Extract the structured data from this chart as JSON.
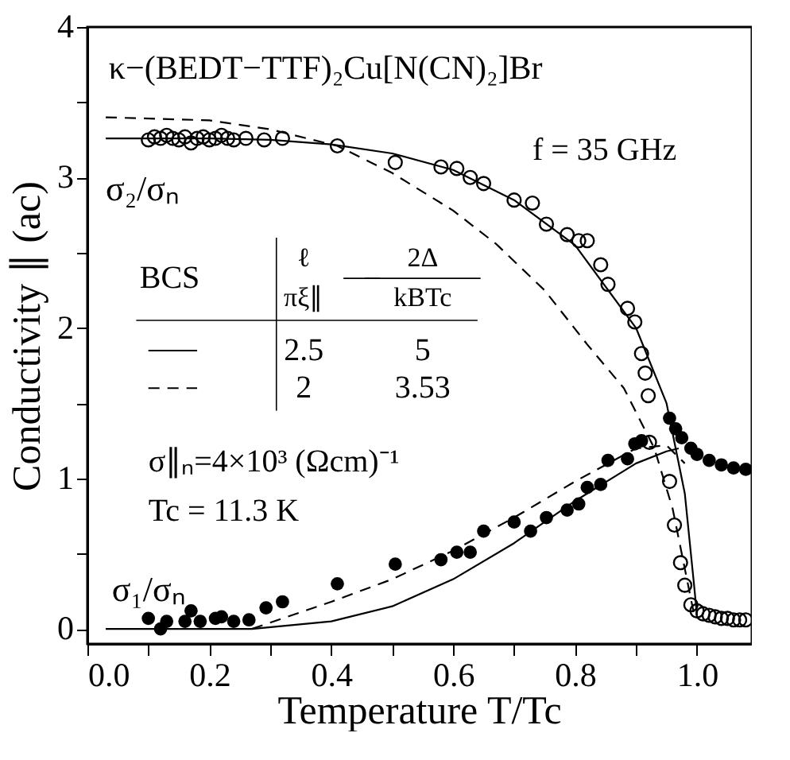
{
  "chart_data": {
    "type": "scatter",
    "xlabel": "Temperature T/Tc",
    "ylabel": "Conductivity ∥ (ac)",
    "xlim": [
      0,
      1.09
    ],
    "ylim": [
      -0.1,
      4
    ],
    "xticks": [
      {
        "value": 0.0,
        "label": "0.0"
      },
      {
        "value": 0.1,
        "label": null
      },
      {
        "value": 0.2,
        "label": "0.2"
      },
      {
        "value": 0.3,
        "label": null
      },
      {
        "value": 0.4,
        "label": "0.4"
      },
      {
        "value": 0.5,
        "label": null
      },
      {
        "value": 0.6,
        "label": "0.6"
      },
      {
        "value": 0.7,
        "label": null
      },
      {
        "value": 0.8,
        "label": "0.8"
      },
      {
        "value": 0.9,
        "label": null
      },
      {
        "value": 1.0,
        "label": "1.0"
      }
    ],
    "yticks": [
      0,
      {
        "value": 0.5,
        "label": null
      },
      1,
      {
        "value": 1.5,
        "label": null
      },
      2,
      {
        "value": 2.5,
        "label": null
      },
      3,
      {
        "value": 3.5,
        "label": null
      },
      4
    ],
    "grid": false,
    "series": [
      {
        "name": "σ₂/σₙ",
        "marker": "circle",
        "color": "#000000",
        "x": [
          0.1,
          0.11,
          0.12,
          0.13,
          0.14,
          0.15,
          0.16,
          0.17,
          0.18,
          0.19,
          0.2,
          0.21,
          0.22,
          0.23,
          0.24,
          0.26,
          0.29,
          0.32,
          0.41,
          0.505,
          0.58,
          0.606,
          0.628,
          0.65,
          0.7,
          0.73,
          0.753,
          0.787,
          0.806,
          0.82,
          0.842,
          0.854,
          0.886,
          0.898,
          0.909,
          0.915,
          0.92,
          0.922,
          0.955,
          0.963,
          0.973,
          0.98,
          0.99,
          1.0,
          1.01,
          1.02,
          1.03,
          1.04,
          1.05,
          1.06,
          1.07,
          1.08
        ],
        "values": [
          3.25,
          3.27,
          3.26,
          3.28,
          3.26,
          3.25,
          3.27,
          3.23,
          3.26,
          3.27,
          3.25,
          3.26,
          3.28,
          3.26,
          3.25,
          3.26,
          3.25,
          3.26,
          3.21,
          3.1,
          3.07,
          3.06,
          3.0,
          2.96,
          2.85,
          2.83,
          2.69,
          2.62,
          2.58,
          2.58,
          2.42,
          2.29,
          2.13,
          2.04,
          1.83,
          1.7,
          1.55,
          1.24,
          0.98,
          0.69,
          0.44,
          0.29,
          0.16,
          0.12,
          0.1,
          0.09,
          0.08,
          0.07,
          0.07,
          0.06,
          0.06,
          0.06
        ]
      },
      {
        "name": "σ₁/σₙ",
        "marker": "circle",
        "color": "#000000",
        "x": [
          0.1,
          0.12,
          0.13,
          0.16,
          0.17,
          0.185,
          0.21,
          0.22,
          0.24,
          0.265,
          0.293,
          0.32,
          0.41,
          0.505,
          0.58,
          0.606,
          0.628,
          0.65,
          0.7,
          0.727,
          0.753,
          0.787,
          0.806,
          0.82,
          0.842,
          0.854,
          0.886,
          0.898,
          0.909,
          0.955,
          0.965,
          0.975,
          0.99,
          1.0,
          1.02,
          1.04,
          1.06,
          1.08
        ],
        "values": [
          0.07,
          0.0,
          0.05,
          0.05,
          0.12,
          0.05,
          0.07,
          0.08,
          0.05,
          0.06,
          0.14,
          0.18,
          0.3,
          0.43,
          0.46,
          0.51,
          0.51,
          0.65,
          0.71,
          0.65,
          0.74,
          0.79,
          0.83,
          0.94,
          0.96,
          1.12,
          1.13,
          1.23,
          1.25,
          1.4,
          1.33,
          1.27,
          1.2,
          1.16,
          1.12,
          1.09,
          1.07,
          1.06
        ]
      },
      {
        "type": "line",
        "line_style": "solid",
        "color": "#000000",
        "x": [
          0.03,
          0.2,
          0.3,
          0.4,
          0.5,
          0.6,
          0.7,
          0.8,
          0.9,
          0.95,
          0.98,
          0.995,
          1.0
        ],
        "values": [
          3.26,
          3.26,
          3.25,
          3.22,
          3.16,
          3.05,
          2.85,
          2.55,
          2.0,
          1.5,
          0.9,
          0.3,
          0.09
        ]
      },
      {
        "type": "line",
        "line_style": "dashed",
        "color": "#000000",
        "x": [
          0.03,
          0.2,
          0.3,
          0.41,
          0.5,
          0.6,
          0.67,
          0.75,
          0.82,
          0.88,
          0.93,
          0.96,
          0.98,
          0.995
        ],
        "values": [
          3.4,
          3.38,
          3.32,
          3.21,
          3.03,
          2.78,
          2.56,
          2.25,
          1.89,
          1.6,
          1.2,
          0.8,
          0.4,
          0.1
        ]
      },
      {
        "type": "line",
        "line_style": "solid",
        "color": "#000000",
        "x": [
          0.03,
          0.27,
          0.4,
          0.5,
          0.6,
          0.7,
          0.8,
          0.9,
          0.95,
          0.97
        ],
        "values": [
          0.0,
          0.0,
          0.05,
          0.15,
          0.33,
          0.57,
          0.85,
          1.1,
          1.18,
          1.2
        ]
      },
      {
        "type": "line",
        "line_style": "dashed",
        "color": "#000000",
        "x": [
          0.27,
          0.4,
          0.5,
          0.6,
          0.7,
          0.8,
          0.9,
          0.95,
          0.98
        ],
        "values": [
          0.0,
          0.18,
          0.33,
          0.52,
          0.74,
          0.98,
          1.2,
          1.22,
          1.1
        ]
      }
    ],
    "annotations": [
      "κ−(BEDT−TTF)₂Cu[N(CN)₂]Br",
      "f = 35 GHz",
      "BCS",
      "ℓ",
      "πξ∥",
      "2Δ",
      "kBTc",
      "2.5",
      "5",
      "2",
      "3.53",
      "σ∥ₙ=4×10³ (Ωcm)⁻¹",
      "Tc = 11.3 K"
    ]
  }
}
